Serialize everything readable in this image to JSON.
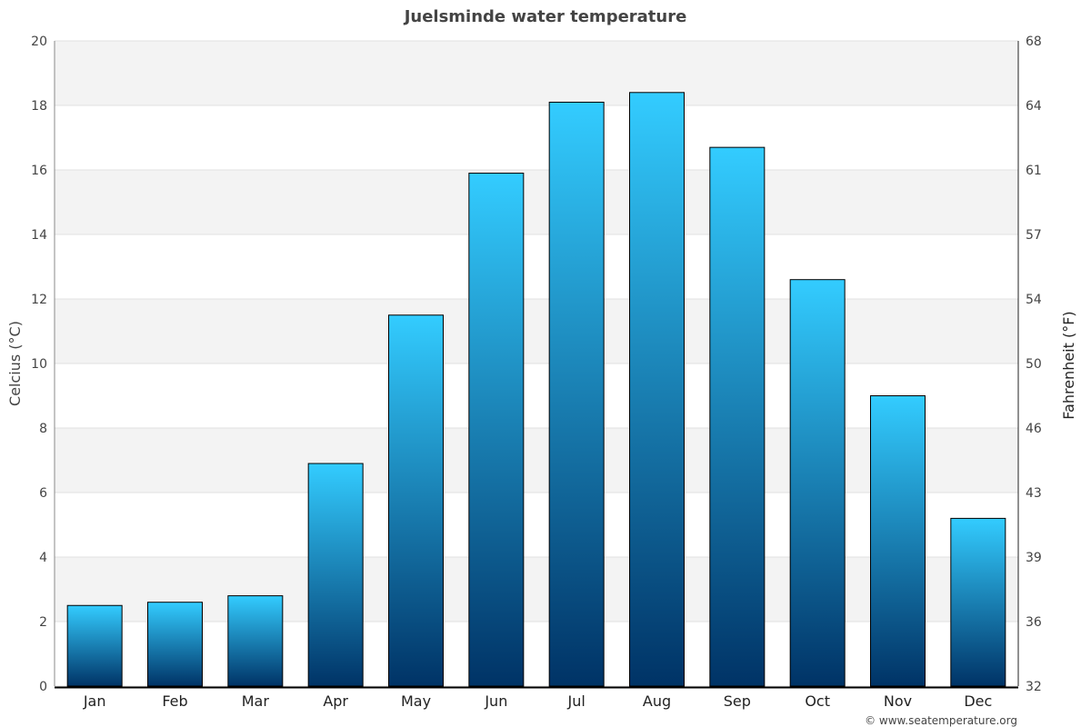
{
  "chart_data": {
    "type": "bar",
    "title": "Juelsminde water temperature",
    "ylabel": "Celcius (°C)",
    "y2label": "Fahrenheit (°F)",
    "categories": [
      "Jan",
      "Feb",
      "Mar",
      "Apr",
      "May",
      "Jun",
      "Jul",
      "Aug",
      "Sep",
      "Oct",
      "Nov",
      "Dec"
    ],
    "values": [
      2.5,
      2.6,
      2.8,
      6.9,
      11.5,
      15.9,
      18.1,
      18.4,
      16.7,
      12.6,
      9.0,
      5.2
    ],
    "ylim": [
      0,
      20
    ],
    "yticks": [
      0,
      2,
      4,
      6,
      8,
      10,
      12,
      14,
      16,
      18,
      20
    ],
    "y2ticks": [
      32,
      36,
      39,
      43,
      46,
      50,
      54,
      57,
      61,
      64,
      68
    ],
    "grid": true,
    "colors": {
      "bar_top": "#33ccff",
      "bar_bottom": "#003366",
      "band": "#f3f3f3"
    }
  },
  "footer": "© www.seatemperature.org"
}
